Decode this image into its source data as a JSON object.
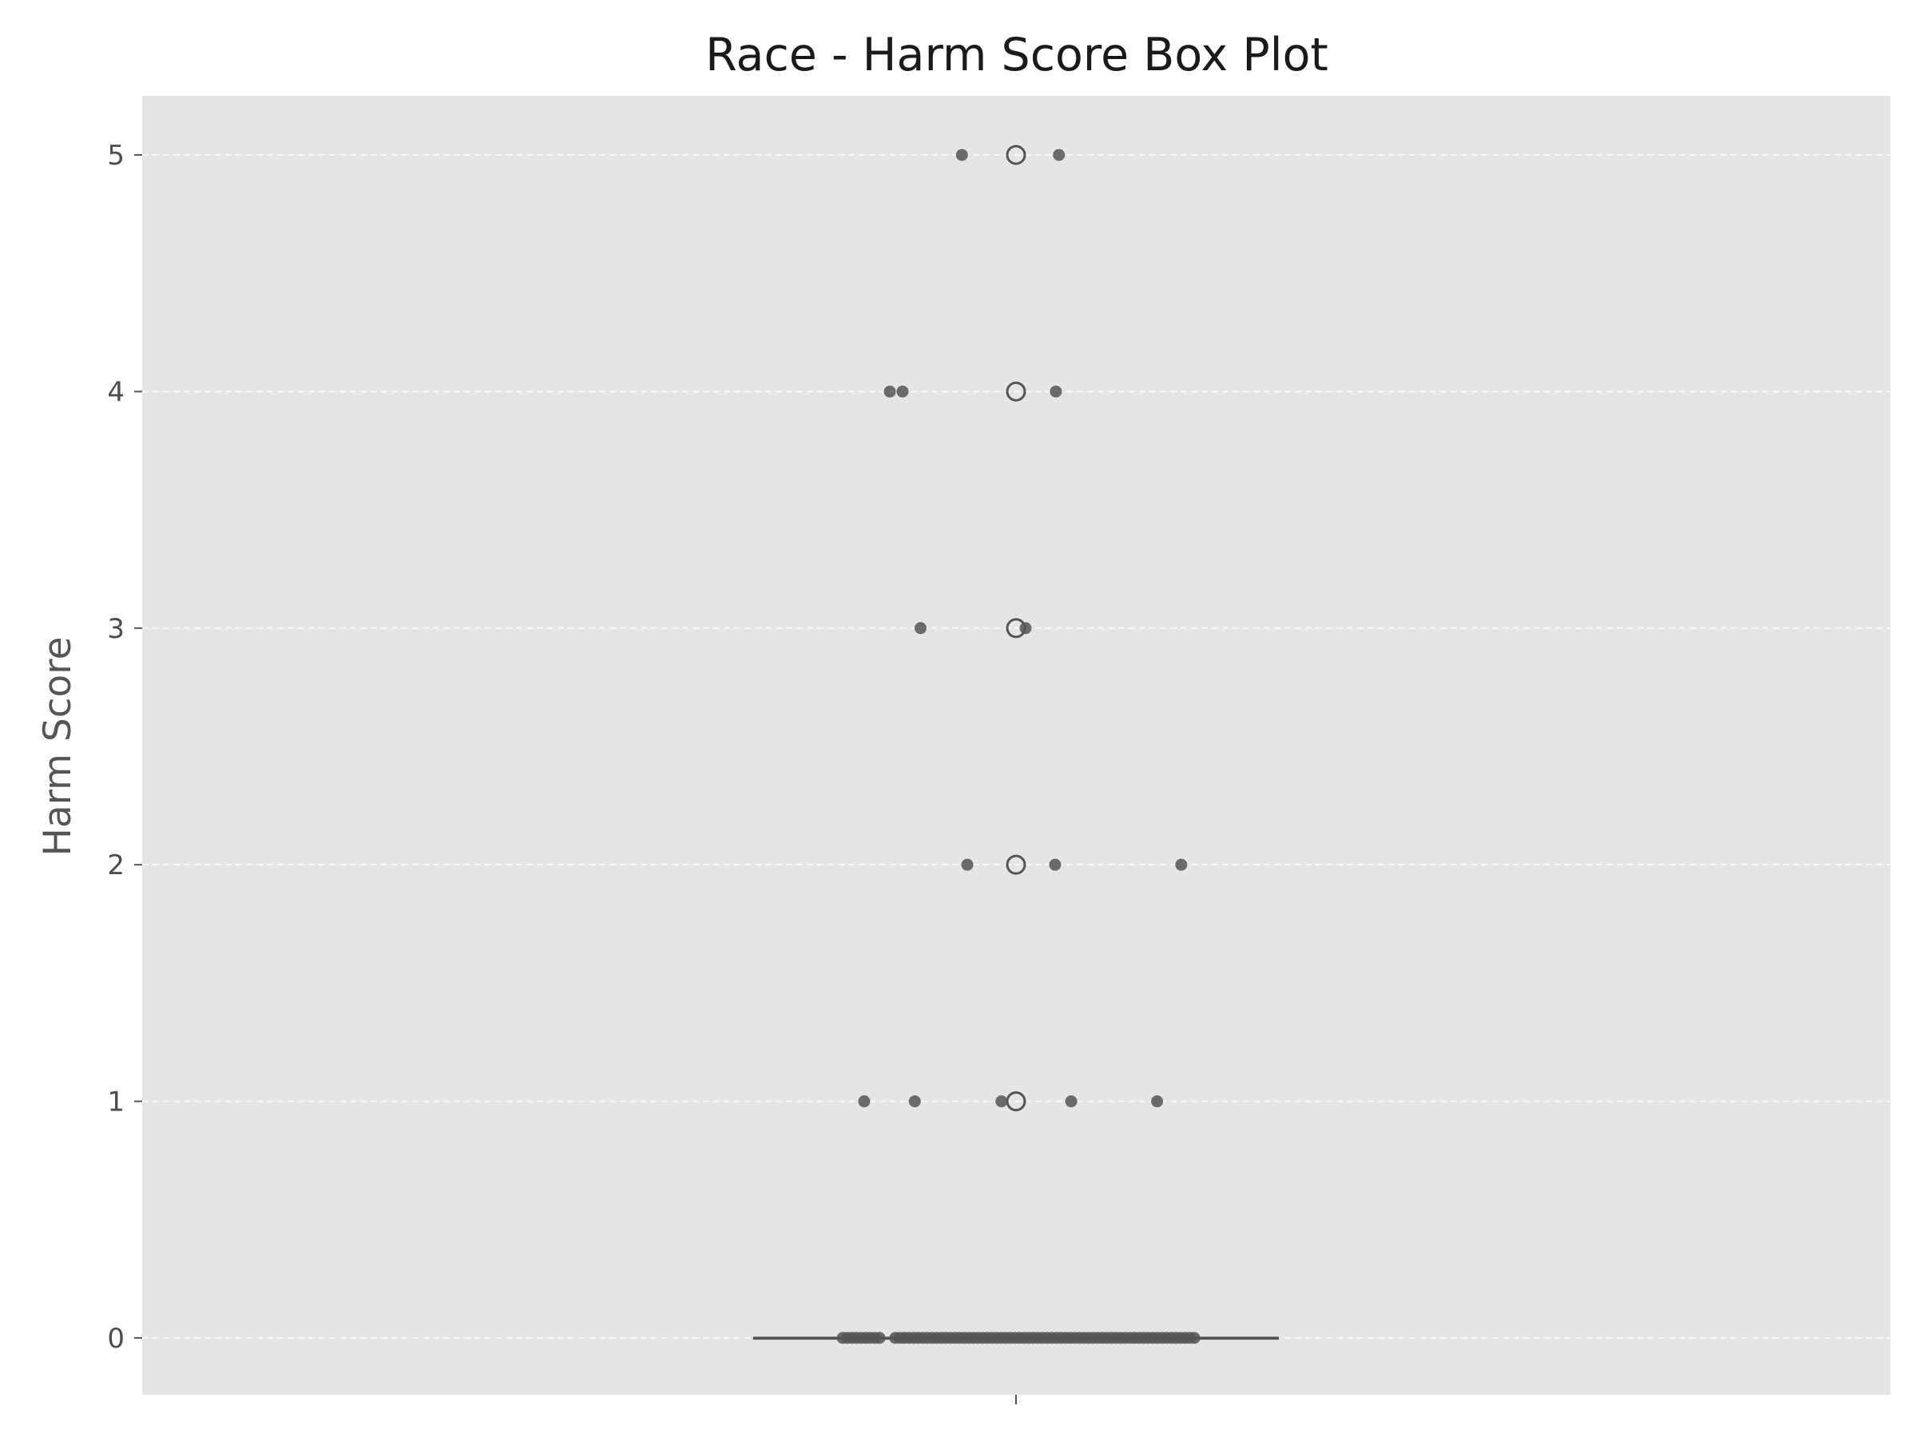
{
  "chart_data": {
    "type": "box",
    "title": "Race - Harm Score Box Plot",
    "xlabel": "",
    "ylabel": "Harm Score",
    "ylim": [
      -0.24,
      5.25
    ],
    "yticks": [
      0,
      1,
      2,
      3,
      4,
      5
    ],
    "grid": "y-dashed",
    "background": "#e5e5e5",
    "colors": {
      "box_line": "#555555",
      "point": "#555555",
      "grid": "#f7f7f7"
    },
    "box": {
      "q1": 0,
      "median": 0,
      "q3": 0,
      "whisker_low": 0,
      "whisker_high": 0,
      "outliers": [
        1,
        2,
        3,
        4,
        5
      ]
    },
    "strip_points": [
      {
        "jitter": -0.141,
        "value": 5
      },
      {
        "jitter": 0.112,
        "value": 5
      },
      {
        "jitter": -0.329,
        "value": 4
      },
      {
        "jitter": -0.296,
        "value": 4
      },
      {
        "jitter": 0.104,
        "value": 4
      },
      {
        "jitter": -0.249,
        "value": 3
      },
      {
        "jitter": 0.025,
        "value": 3
      },
      {
        "jitter": -0.127,
        "value": 2
      },
      {
        "jitter": 0.102,
        "value": 2
      },
      {
        "jitter": 0.431,
        "value": 2
      },
      {
        "jitter": -0.396,
        "value": 1
      },
      {
        "jitter": -0.264,
        "value": 1
      },
      {
        "jitter": -0.038,
        "value": 1
      },
      {
        "jitter": 0.144,
        "value": 1
      },
      {
        "jitter": 0.368,
        "value": 1
      },
      {
        "jitter": -0.452,
        "value": 0
      },
      {
        "jitter": -0.44,
        "value": 0
      },
      {
        "jitter": -0.428,
        "value": 0
      },
      {
        "jitter": -0.416,
        "value": 0
      },
      {
        "jitter": -0.404,
        "value": 0
      },
      {
        "jitter": -0.392,
        "value": 0
      },
      {
        "jitter": -0.38,
        "value": 0
      },
      {
        "jitter": -0.368,
        "value": 0
      },
      {
        "jitter": -0.356,
        "value": 0
      },
      {
        "jitter": -0.315,
        "value": 0
      },
      {
        "jitter": -0.303,
        "value": 0
      },
      {
        "jitter": -0.291,
        "value": 0
      },
      {
        "jitter": -0.279,
        "value": 0
      },
      {
        "jitter": -0.267,
        "value": 0
      },
      {
        "jitter": -0.255,
        "value": 0
      },
      {
        "jitter": -0.243,
        "value": 0
      },
      {
        "jitter": -0.231,
        "value": 0
      },
      {
        "jitter": -0.219,
        "value": 0
      },
      {
        "jitter": -0.207,
        "value": 0
      },
      {
        "jitter": -0.195,
        "value": 0
      },
      {
        "jitter": -0.183,
        "value": 0
      },
      {
        "jitter": -0.171,
        "value": 0
      },
      {
        "jitter": -0.159,
        "value": 0
      },
      {
        "jitter": -0.147,
        "value": 0
      },
      {
        "jitter": -0.135,
        "value": 0
      },
      {
        "jitter": -0.123,
        "value": 0
      },
      {
        "jitter": -0.111,
        "value": 0
      },
      {
        "jitter": -0.099,
        "value": 0
      },
      {
        "jitter": -0.087,
        "value": 0
      },
      {
        "jitter": -0.075,
        "value": 0
      },
      {
        "jitter": -0.063,
        "value": 0
      },
      {
        "jitter": -0.051,
        "value": 0
      },
      {
        "jitter": -0.039,
        "value": 0
      },
      {
        "jitter": -0.027,
        "value": 0
      },
      {
        "jitter": -0.015,
        "value": 0
      },
      {
        "jitter": -0.003,
        "value": 0
      },
      {
        "jitter": 0.009,
        "value": 0
      },
      {
        "jitter": 0.021,
        "value": 0
      },
      {
        "jitter": 0.033,
        "value": 0
      },
      {
        "jitter": 0.045,
        "value": 0
      },
      {
        "jitter": 0.057,
        "value": 0
      },
      {
        "jitter": 0.069,
        "value": 0
      },
      {
        "jitter": 0.081,
        "value": 0
      },
      {
        "jitter": 0.093,
        "value": 0
      },
      {
        "jitter": 0.105,
        "value": 0
      },
      {
        "jitter": 0.117,
        "value": 0
      },
      {
        "jitter": 0.129,
        "value": 0
      },
      {
        "jitter": 0.141,
        "value": 0
      },
      {
        "jitter": 0.153,
        "value": 0
      },
      {
        "jitter": 0.165,
        "value": 0
      },
      {
        "jitter": 0.177,
        "value": 0
      },
      {
        "jitter": 0.189,
        "value": 0
      },
      {
        "jitter": 0.201,
        "value": 0
      },
      {
        "jitter": 0.213,
        "value": 0
      },
      {
        "jitter": 0.225,
        "value": 0
      },
      {
        "jitter": 0.237,
        "value": 0
      },
      {
        "jitter": 0.249,
        "value": 0
      },
      {
        "jitter": 0.261,
        "value": 0
      },
      {
        "jitter": 0.273,
        "value": 0
      },
      {
        "jitter": 0.285,
        "value": 0
      },
      {
        "jitter": 0.297,
        "value": 0
      },
      {
        "jitter": 0.309,
        "value": 0
      },
      {
        "jitter": 0.321,
        "value": 0
      },
      {
        "jitter": 0.333,
        "value": 0
      },
      {
        "jitter": 0.345,
        "value": 0
      },
      {
        "jitter": 0.357,
        "value": 0
      },
      {
        "jitter": 0.369,
        "value": 0
      },
      {
        "jitter": 0.381,
        "value": 0
      },
      {
        "jitter": 0.393,
        "value": 0
      },
      {
        "jitter": 0.405,
        "value": 0
      },
      {
        "jitter": 0.417,
        "value": 0
      },
      {
        "jitter": 0.429,
        "value": 0
      },
      {
        "jitter": 0.441,
        "value": 0
      },
      {
        "jitter": 0.453,
        "value": 0
      },
      {
        "jitter": 0.465,
        "value": 0
      }
    ]
  }
}
